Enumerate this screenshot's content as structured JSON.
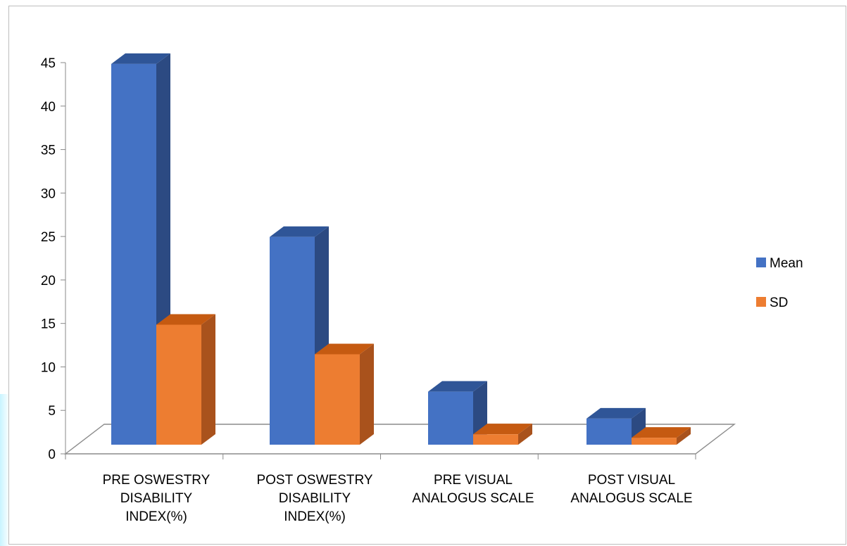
{
  "chart_data": {
    "type": "bar",
    "categories": [
      [
        "PRE OSWESTRY",
        "DISABILITY",
        "INDEX(%)"
      ],
      [
        "POST OSWESTRY",
        "DISABILITY",
        "INDEX(%)"
      ],
      [
        "PRE VISUAL",
        "ANALOGUS SCALE"
      ],
      [
        "POST VISUAL",
        "ANALOGUS SCALE"
      ]
    ],
    "series": [
      {
        "name": "Mean",
        "values": [
          43.8,
          23.9,
          6.1,
          3.0
        ]
      },
      {
        "name": "SD",
        "values": [
          13.8,
          10.4,
          1.2,
          0.8
        ]
      }
    ],
    "ylim": [
      0,
      45
    ],
    "yticks": [
      "0",
      "5",
      "10",
      "15",
      "20",
      "25",
      "30",
      "35",
      "40",
      "45"
    ],
    "legend": "right",
    "colors": {
      "Mean": {
        "front": "#4472c4",
        "side": "#2c4a82",
        "top": "#2f5597"
      },
      "SD": {
        "front": "#ed7d31",
        "side": "#a9521c",
        "top": "#c55a11"
      }
    }
  }
}
